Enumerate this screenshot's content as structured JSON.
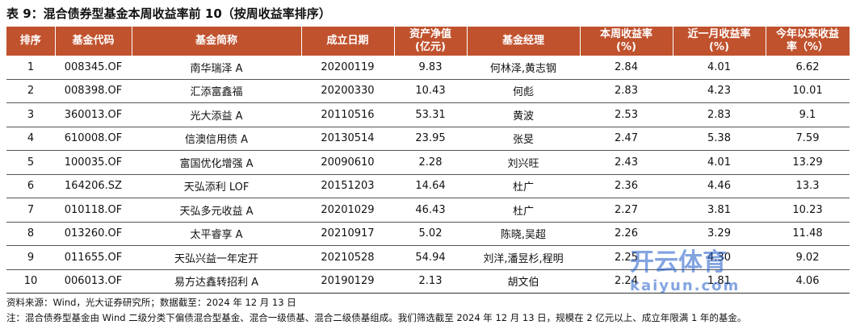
{
  "title": "表 9：混合债券型基金本周收益率前 10（按周收益率排序）",
  "table": {
    "header": [
      [
        "排序"
      ],
      [
        "基金代码"
      ],
      [
        "基金简称"
      ],
      [
        "成立日期"
      ],
      [
        "资产净值",
        "(亿元)"
      ],
      [
        "基金经理"
      ],
      [
        "本周收益率",
        "(%)"
      ],
      [
        "近一月收益率",
        "(%)"
      ],
      [
        "今年以来收益",
        "率（%）"
      ]
    ],
    "rows": [
      [
        "1",
        "008345.OF",
        "南华瑞泽 A",
        "20200119",
        "9.83",
        "何林泽,黄志钢",
        "2.84",
        "4.01",
        "6.62"
      ],
      [
        "2",
        "008398.OF",
        "汇添富鑫福",
        "20200330",
        "10.43",
        "何彪",
        "2.83",
        "4.23",
        "10.01"
      ],
      [
        "3",
        "360013.OF",
        "光大添益 A",
        "20110516",
        "53.31",
        "黄波",
        "2.53",
        "2.83",
        "9.1"
      ],
      [
        "4",
        "610008.OF",
        "信澳信用债 A",
        "20130514",
        "23.95",
        "张旻",
        "2.47",
        "5.38",
        "7.59"
      ],
      [
        "5",
        "100035.OF",
        "富国优化增强 A",
        "20090610",
        "2.28",
        "刘兴旺",
        "2.43",
        "4.01",
        "13.29"
      ],
      [
        "6",
        "164206.SZ",
        "天弘添利 LOF",
        "20151203",
        "14.64",
        "杜广",
        "2.36",
        "4.46",
        "13.3"
      ],
      [
        "7",
        "010118.OF",
        "天弘多元收益 A",
        "20201029",
        "46.43",
        "杜广",
        "2.27",
        "3.81",
        "10.23"
      ],
      [
        "8",
        "013260.OF",
        "太平睿享 A",
        "20210917",
        "5.02",
        "陈晓,吴超",
        "2.26",
        "3.29",
        "11.48"
      ],
      [
        "9",
        "011655.OF",
        "天弘兴益一年定开",
        "20210528",
        "54.94",
        "刘洋,潘昱杉,程明",
        "2.25",
        "4.30",
        "9.02"
      ],
      [
        "10",
        "006013.OF",
        "易方达鑫转招利 A",
        "20190129",
        "2.13",
        "胡文伯",
        "2.24",
        "1.81",
        "4.06"
      ]
    ]
  },
  "source": "资料来源：Wind，光大证券研究所；数据截至：2024 年 12 月 13 日",
  "note": "注：混合债券型基金由 Wind 二级分类下偏债混合型基金、混合一级债基、混合二级债基组成。我们筛选截至 2024 年 12 月 13 日，规模在 2 亿元以上、成立年限满 1 年的基金。",
  "watermark": [
    "开云体育",
    "kaiyun.com"
  ]
}
